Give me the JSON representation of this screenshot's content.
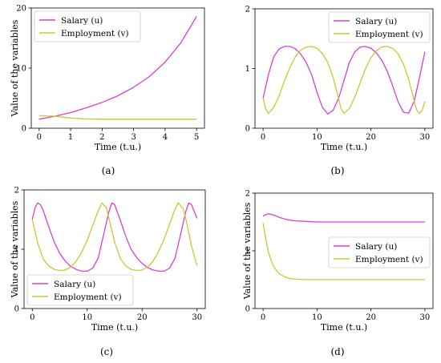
{
  "chart_data": [
    {
      "type": "line",
      "caption": "(a)",
      "xlabel": "Time (t.u.)",
      "ylabel": "Value of the variables",
      "xlim": [
        -0.25,
        5.25
      ],
      "ylim": [
        0,
        20
      ],
      "xticks": [
        "0",
        "1",
        "2",
        "3",
        "4",
        "5"
      ],
      "yticks": [
        "0",
        "10",
        "20"
      ],
      "legend": "top-left",
      "series": [
        {
          "name": "Salary (u)",
          "color": "#d63fd6",
          "points": [
            [
              0,
              1.5
            ],
            [
              0.5,
              2.0
            ],
            [
              1,
              2.6
            ],
            [
              1.5,
              3.4
            ],
            [
              2,
              4.3
            ],
            [
              2.5,
              5.4
            ],
            [
              3,
              6.8
            ],
            [
              3.5,
              8.6
            ],
            [
              4,
              11.0
            ],
            [
              4.5,
              14.2
            ],
            [
              5,
              18.6
            ]
          ]
        },
        {
          "name": "Employment (v)",
          "color": "#c8c832",
          "points": [
            [
              0,
              2.1
            ],
            [
              0.5,
              2.0
            ],
            [
              1,
              1.7
            ],
            [
              1.5,
              1.55
            ],
            [
              2,
              1.5
            ],
            [
              3,
              1.5
            ],
            [
              4,
              1.5
            ],
            [
              5,
              1.5
            ]
          ]
        }
      ]
    },
    {
      "type": "line",
      "caption": "(b)",
      "xlabel": "Time (t.u.)",
      "ylabel": "",
      "xlim": [
        -1.5,
        31.5
      ],
      "ylim": [
        0,
        2
      ],
      "xticks": [
        "0",
        "10",
        "20",
        "30"
      ],
      "yticks": [
        "0",
        "1",
        "2"
      ],
      "legend": "top-right",
      "series": [
        {
          "name": "Salary (u)",
          "color": "#d63fd6",
          "points": [
            [
              0,
              0.5
            ],
            [
              1,
              0.9
            ],
            [
              2,
              1.2
            ],
            [
              3,
              1.33
            ],
            [
              4,
              1.37
            ],
            [
              5,
              1.37
            ],
            [
              6,
              1.33
            ],
            [
              7,
              1.24
            ],
            [
              8,
              1.1
            ],
            [
              9,
              0.9
            ],
            [
              10,
              0.6
            ],
            [
              11,
              0.35
            ],
            [
              12,
              0.24
            ],
            [
              13,
              0.3
            ],
            [
              14,
              0.5
            ],
            [
              15,
              0.8
            ],
            [
              16,
              1.1
            ],
            [
              17,
              1.28
            ],
            [
              18,
              1.36
            ],
            [
              19,
              1.37
            ],
            [
              20,
              1.34
            ],
            [
              21,
              1.26
            ],
            [
              22,
              1.14
            ],
            [
              23,
              0.96
            ],
            [
              24,
              0.72
            ],
            [
              25,
              0.45
            ],
            [
              26,
              0.27
            ],
            [
              27,
              0.25
            ],
            [
              28,
              0.45
            ],
            [
              29,
              0.85
            ],
            [
              30,
              1.28
            ]
          ]
        },
        {
          "name": "Employment (v)",
          "color": "#c8c832",
          "points": [
            [
              0,
              0.5
            ],
            [
              0.5,
              0.32
            ],
            [
              1,
              0.25
            ],
            [
              2,
              0.35
            ],
            [
              3,
              0.55
            ],
            [
              4,
              0.8
            ],
            [
              5,
              1.02
            ],
            [
              6,
              1.2
            ],
            [
              7,
              1.31
            ],
            [
              8,
              1.36
            ],
            [
              9,
              1.37
            ],
            [
              10,
              1.34
            ],
            [
              11,
              1.25
            ],
            [
              12,
              1.1
            ],
            [
              13,
              0.85
            ],
            [
              14,
              0.5
            ],
            [
              14.5,
              0.32
            ],
            [
              15,
              0.25
            ],
            [
              16,
              0.33
            ],
            [
              17,
              0.52
            ],
            [
              18,
              0.76
            ],
            [
              19,
              1.0
            ],
            [
              20,
              1.18
            ],
            [
              21,
              1.3
            ],
            [
              22,
              1.36
            ],
            [
              23,
              1.37
            ],
            [
              24,
              1.34
            ],
            [
              25,
              1.25
            ],
            [
              26,
              1.08
            ],
            [
              27,
              0.82
            ],
            [
              28,
              0.46
            ],
            [
              28.5,
              0.3
            ],
            [
              29,
              0.25
            ],
            [
              29.5,
              0.3
            ],
            [
              30,
              0.45
            ]
          ]
        }
      ]
    },
    {
      "type": "line",
      "caption": "(c)",
      "xlabel": "Time (t.u.)",
      "ylabel": "Value of the variables",
      "xlim": [
        -1.5,
        31.5
      ],
      "ylim": [
        0,
        2
      ],
      "xticks": [
        "0",
        "10",
        "20",
        "30"
      ],
      "yticks": [
        "0",
        "1",
        "2"
      ],
      "legend": "bottom-left",
      "series": [
        {
          "name": "Salary (u)",
          "color": "#d63fd6",
          "points": [
            [
              0,
              1.5
            ],
            [
              0.5,
              1.7
            ],
            [
              1,
              1.78
            ],
            [
              1.5,
              1.75
            ],
            [
              2,
              1.65
            ],
            [
              3,
              1.38
            ],
            [
              4,
              1.12
            ],
            [
              5,
              0.93
            ],
            [
              6,
              0.8
            ],
            [
              7,
              0.71
            ],
            [
              8,
              0.66
            ],
            [
              9,
              0.63
            ],
            [
              10,
              0.63
            ],
            [
              11,
              0.68
            ],
            [
              12,
              0.85
            ],
            [
              13,
              1.25
            ],
            [
              14,
              1.65
            ],
            [
              14.5,
              1.78
            ],
            [
              15,
              1.75
            ],
            [
              16,
              1.5
            ],
            [
              17,
              1.22
            ],
            [
              18,
              1.0
            ],
            [
              19,
              0.86
            ],
            [
              20,
              0.76
            ],
            [
              21,
              0.69
            ],
            [
              22,
              0.65
            ],
            [
              23,
              0.63
            ],
            [
              24,
              0.63
            ],
            [
              25,
              0.68
            ],
            [
              26,
              0.85
            ],
            [
              27,
              1.25
            ],
            [
              28,
              1.65
            ],
            [
              28.5,
              1.78
            ],
            [
              29,
              1.75
            ],
            [
              30,
              1.52
            ]
          ]
        },
        {
          "name": "Employment (v)",
          "color": "#c8c832",
          "points": [
            [
              0,
              1.5
            ],
            [
              1,
              1.1
            ],
            [
              2,
              0.83
            ],
            [
              3,
              0.72
            ],
            [
              4,
              0.66
            ],
            [
              5,
              0.64
            ],
            [
              6,
              0.65
            ],
            [
              7,
              0.7
            ],
            [
              8,
              0.8
            ],
            [
              9,
              0.95
            ],
            [
              10,
              1.15
            ],
            [
              11,
              1.4
            ],
            [
              12,
              1.65
            ],
            [
              12.7,
              1.78
            ],
            [
              13.5,
              1.7
            ],
            [
              14,
              1.5
            ],
            [
              15,
              1.12
            ],
            [
              16,
              0.85
            ],
            [
              17,
              0.72
            ],
            [
              18,
              0.66
            ],
            [
              19,
              0.64
            ],
            [
              20,
              0.65
            ],
            [
              21,
              0.7
            ],
            [
              22,
              0.8
            ],
            [
              23,
              0.96
            ],
            [
              24,
              1.17
            ],
            [
              25,
              1.42
            ],
            [
              26,
              1.68
            ],
            [
              26.6,
              1.78
            ],
            [
              27.5,
              1.68
            ],
            [
              28,
              1.5
            ],
            [
              29,
              1.05
            ],
            [
              30,
              0.72
            ]
          ]
        }
      ]
    },
    {
      "type": "line",
      "caption": "(d)",
      "xlabel": "Time (t.u.)",
      "ylabel": "Value of the variables",
      "xlim": [
        -1.5,
        31.5
      ],
      "ylim": [
        0,
        2
      ],
      "xticks": [
        "0",
        "10",
        "20",
        "30"
      ],
      "yticks": [
        "0",
        "1",
        "2"
      ],
      "legend": "center-right",
      "series": [
        {
          "name": "Salary (u)",
          "color": "#d63fd6",
          "points": [
            [
              0,
              1.6
            ],
            [
              0.5,
              1.63
            ],
            [
              1,
              1.64
            ],
            [
              2,
              1.62
            ],
            [
              3,
              1.58
            ],
            [
              4,
              1.55
            ],
            [
              5,
              1.53
            ],
            [
              6,
              1.52
            ],
            [
              8,
              1.51
            ],
            [
              10,
              1.5
            ],
            [
              15,
              1.5
            ],
            [
              20,
              1.5
            ],
            [
              25,
              1.5
            ],
            [
              30,
              1.5
            ]
          ]
        },
        {
          "name": "Employment (v)",
          "color": "#c8c832",
          "points": [
            [
              0,
              1.48
            ],
            [
              0.5,
              1.2
            ],
            [
              1,
              0.98
            ],
            [
              1.5,
              0.83
            ],
            [
              2,
              0.72
            ],
            [
              3,
              0.6
            ],
            [
              4,
              0.55
            ],
            [
              5,
              0.52
            ],
            [
              6,
              0.51
            ],
            [
              8,
              0.5
            ],
            [
              10,
              0.5
            ],
            [
              15,
              0.5
            ],
            [
              20,
              0.5
            ],
            [
              25,
              0.5
            ],
            [
              30,
              0.5
            ]
          ]
        }
      ]
    }
  ]
}
